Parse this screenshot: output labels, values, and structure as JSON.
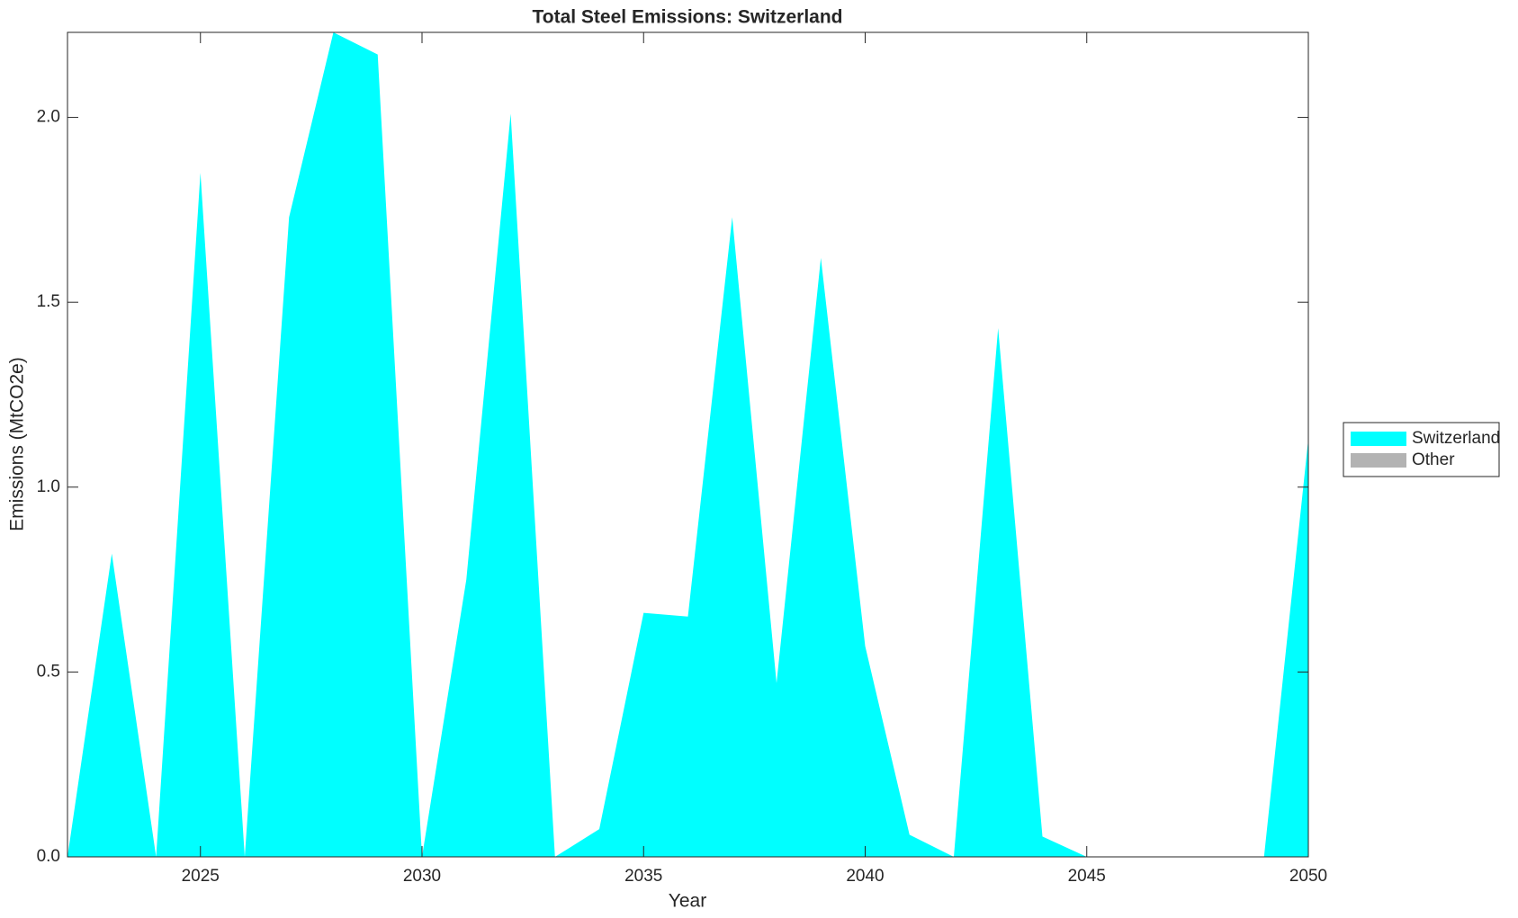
{
  "chart_data": {
    "type": "stacked-area",
    "title": "Total Steel Emissions: Switzerland",
    "xlabel": "Year",
    "ylabel": "Emissions (MtCO2e)",
    "x": [
      2022,
      2023,
      2024,
      2025,
      2026,
      2027,
      2028,
      2029,
      2030,
      2031,
      2032,
      2033,
      2034,
      2035,
      2036,
      2037,
      2038,
      2039,
      2040,
      2041,
      2042,
      2043,
      2044,
      2045,
      2046,
      2047,
      2048,
      2049,
      2050
    ],
    "series": [
      {
        "name": "Switzerland",
        "color": "#00ffff",
        "values": [
          0,
          0.82,
          0,
          1.85,
          0,
          1.73,
          2.23,
          2.17,
          0,
          0.75,
          2.01,
          0,
          0.075,
          0.66,
          0.65,
          1.73,
          0.47,
          1.62,
          0.57,
          0.06,
          0,
          1.43,
          0.055,
          0,
          0,
          0,
          0,
          0,
          1.13
        ]
      },
      {
        "name": "Other",
        "color": "#b3b3b3",
        "values": [
          0,
          0,
          0,
          0,
          0,
          0,
          0,
          0,
          0,
          0,
          0,
          0,
          0,
          0,
          0,
          0,
          0,
          0,
          0,
          0,
          0,
          0,
          0,
          0,
          0,
          0,
          0,
          0,
          0
        ]
      }
    ],
    "xlim": [
      2022,
      2050
    ],
    "ylim": [
      0,
      2.23
    ],
    "xticks": [
      2025,
      2030,
      2035,
      2040,
      2045,
      2050
    ],
    "yticks": [
      {
        "value": 0,
        "label": "0.0"
      },
      0.5,
      {
        "value": 1,
        "label": "1.0"
      },
      1.5,
      {
        "value": 2,
        "label": "2.0"
      }
    ],
    "grid": false,
    "legend": "outside-right"
  }
}
